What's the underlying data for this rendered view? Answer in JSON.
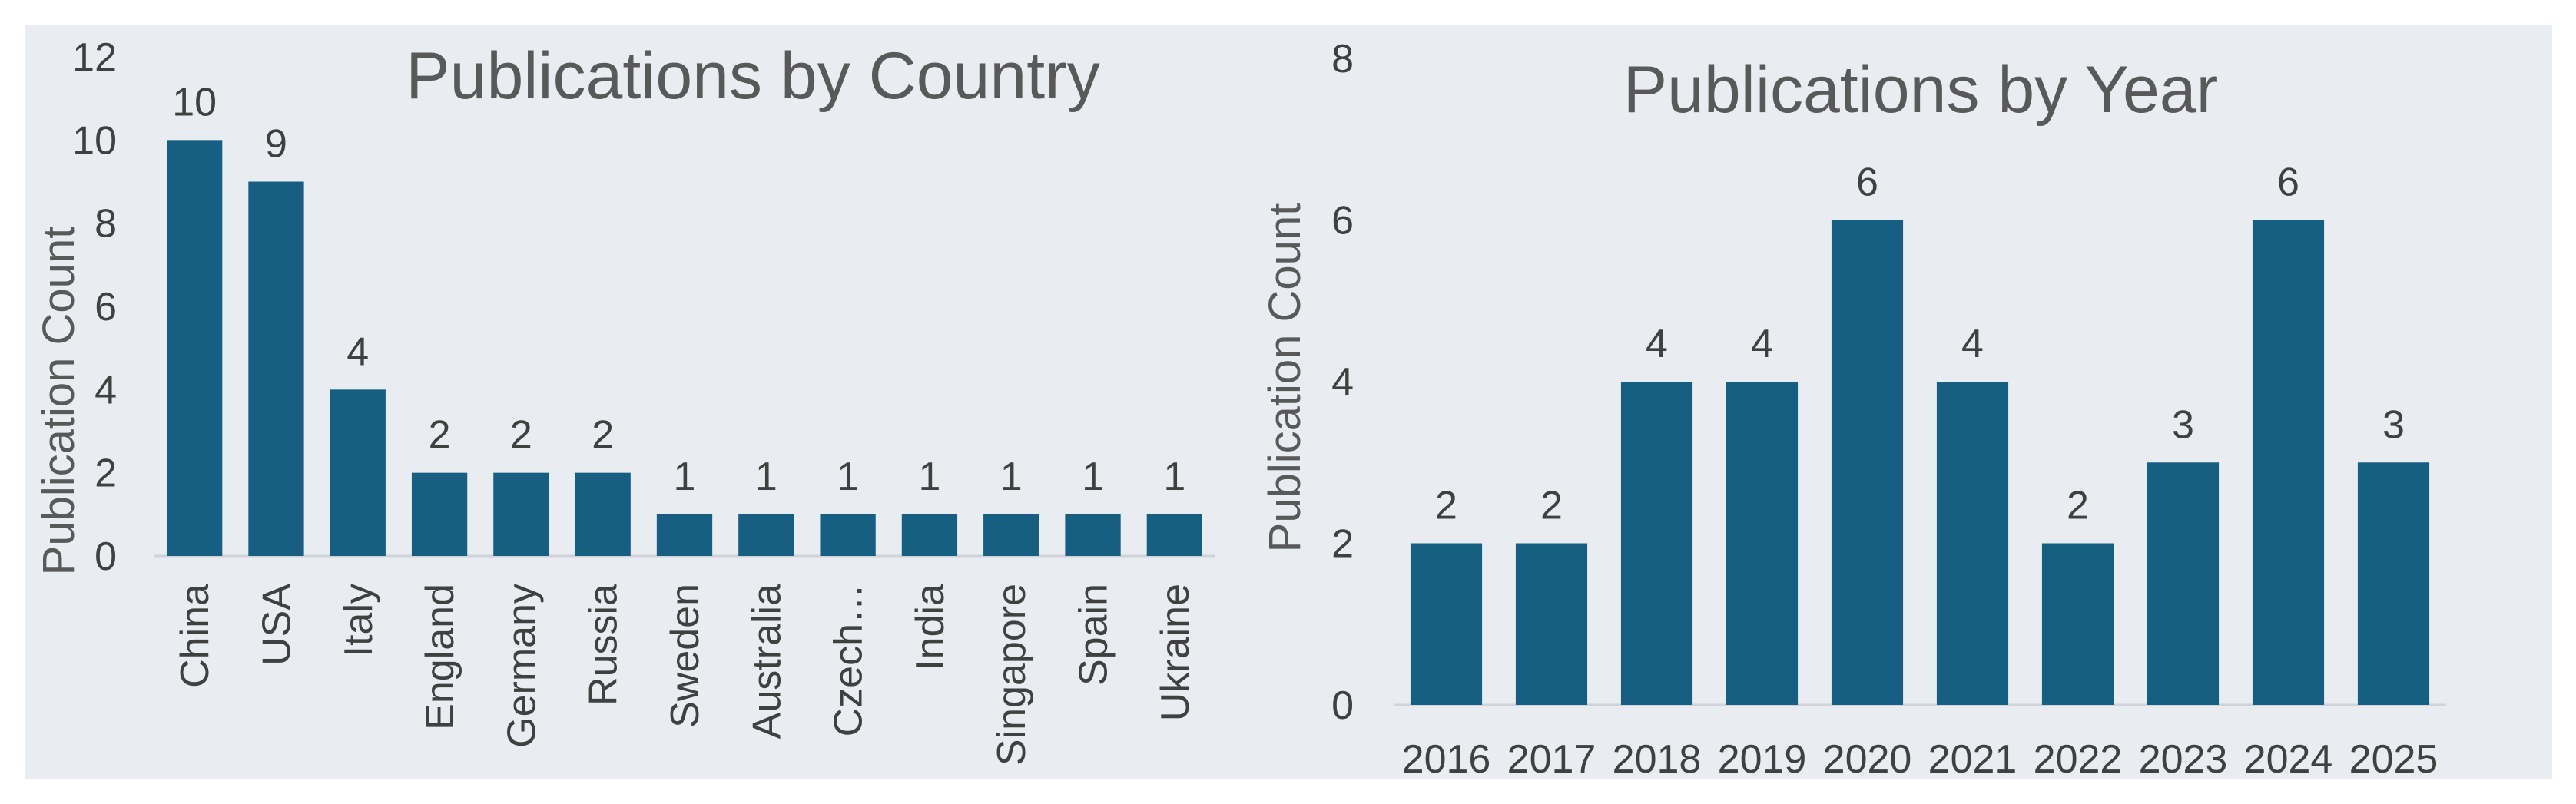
{
  "chart_data": [
    {
      "type": "bar",
      "title": "Publications by Country",
      "xlabel": "",
      "ylabel": "Publication Count",
      "categories": [
        "China",
        "USA",
        "Italy",
        "England",
        "Germany",
        "Russia",
        "Sweden",
        "Australia",
        "Czech…",
        "India",
        "Singapore",
        "Spain",
        "Ukraine"
      ],
      "values": [
        10,
        9,
        4,
        2,
        2,
        2,
        1,
        1,
        1,
        1,
        1,
        1,
        1
      ],
      "ylim": [
        0,
        12
      ],
      "yticks": [
        "0",
        "2",
        "4",
        "6",
        "8",
        "10",
        "12"
      ],
      "grid": false,
      "data_labels": true,
      "bar_color": "#165f82"
    },
    {
      "type": "bar",
      "title": "Publications by Year",
      "xlabel": "",
      "ylabel": "Publication Count",
      "categories": [
        "2016",
        "2017",
        "2018",
        "2019",
        "2020",
        "2021",
        "2022",
        "2023",
        "2024",
        "2025"
      ],
      "values": [
        2,
        2,
        4,
        4,
        6,
        4,
        2,
        3,
        6,
        3
      ],
      "ylim": [
        0,
        8
      ],
      "yticks": [
        "0",
        "2",
        "4",
        "6",
        "8"
      ],
      "grid": false,
      "data_labels": true,
      "bar_color": "#165f82"
    }
  ]
}
